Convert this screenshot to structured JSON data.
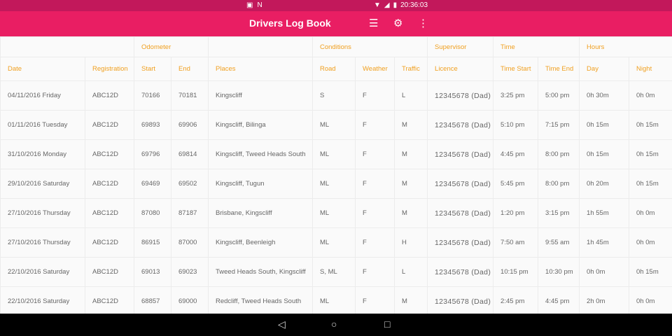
{
  "status_bar": {
    "time": "20:36:03",
    "icons": [
      "image-icon",
      "n-icon",
      "wifi-icon",
      "signal-icon",
      "battery-icon"
    ]
  },
  "app_bar": {
    "title": "Drivers Log Book",
    "actions": [
      "list-icon",
      "settings-icon",
      "more-vert-icon"
    ]
  },
  "table": {
    "groups": {
      "odometer": "Odometer",
      "conditions": "Conditions",
      "supervisor": "Supervisor",
      "time": "Time",
      "hours": "Hours"
    },
    "columns": [
      "Date",
      "Registration",
      "Start",
      "End",
      "Places",
      "Road",
      "Weather",
      "Traffic",
      "Licence",
      "Time Start",
      "Time End",
      "Day",
      "Night"
    ],
    "rows": [
      [
        "04/11/2016 Friday",
        "ABC12D",
        "70166",
        "70181",
        "Kingscliff",
        "S",
        "F",
        "L",
        "12345678 (Dad)",
        "3:25 pm",
        "5:00 pm",
        "0h 30m",
        "0h 0m"
      ],
      [
        "01/11/2016 Tuesday",
        "ABC12D",
        "69893",
        "69906",
        "Kingscliff, Bilinga",
        "ML",
        "F",
        "M",
        "12345678 (Dad)",
        "5:10 pm",
        "7:15 pm",
        "0h 15m",
        "0h 15m"
      ],
      [
        "31/10/2016 Monday",
        "ABC12D",
        "69796",
        "69814",
        "Kingscliff, Tweed Heads South",
        "ML",
        "F",
        "M",
        "12345678 (Dad)",
        "4:45 pm",
        "8:00 pm",
        "0h 15m",
        "0h 15m"
      ],
      [
        "29/10/2016 Saturday",
        "ABC12D",
        "69469",
        "69502",
        "Kingscliff, Tugun",
        "ML",
        "F",
        "M",
        "12345678 (Dad)",
        "5:45 pm",
        "8:00 pm",
        "0h 20m",
        "0h 15m"
      ],
      [
        "27/10/2016 Thursday",
        "ABC12D",
        "87080",
        "87187",
        "Brisbane, Kingscliff",
        "ML",
        "F",
        "M",
        "12345678 (Dad)",
        "1:20 pm",
        "3:15 pm",
        "1h 55m",
        "0h 0m"
      ],
      [
        "27/10/2016 Thursday",
        "ABC12D",
        "86915",
        "87000",
        "Kingscliff, Beenleigh",
        "ML",
        "F",
        "H",
        "12345678 (Dad)",
        "7:50 am",
        "9:55 am",
        "1h 45m",
        "0h 0m"
      ],
      [
        "22/10/2016 Saturday",
        "ABC12D",
        "69013",
        "69023",
        "Tweed Heads South, Kingscliff",
        "S, ML",
        "F",
        "L",
        "12345678 (Dad)",
        "10:15 pm",
        "10:30 pm",
        "0h 0m",
        "0h 15m"
      ],
      [
        "22/10/2016 Saturday",
        "ABC12D",
        "68857",
        "69000",
        "Redcliff, Tweed Heads South",
        "ML",
        "F",
        "M",
        "12345678 (Dad)",
        "2:45 pm",
        "4:45 pm",
        "2h 0m",
        "0h 0m"
      ]
    ]
  },
  "nav_bar": {
    "buttons": [
      "back-icon",
      "home-icon",
      "recents-icon"
    ]
  },
  "colors": {
    "status_bar": "#c2185b",
    "app_bar": "#e91e63",
    "header_text": "#f0a020"
  }
}
